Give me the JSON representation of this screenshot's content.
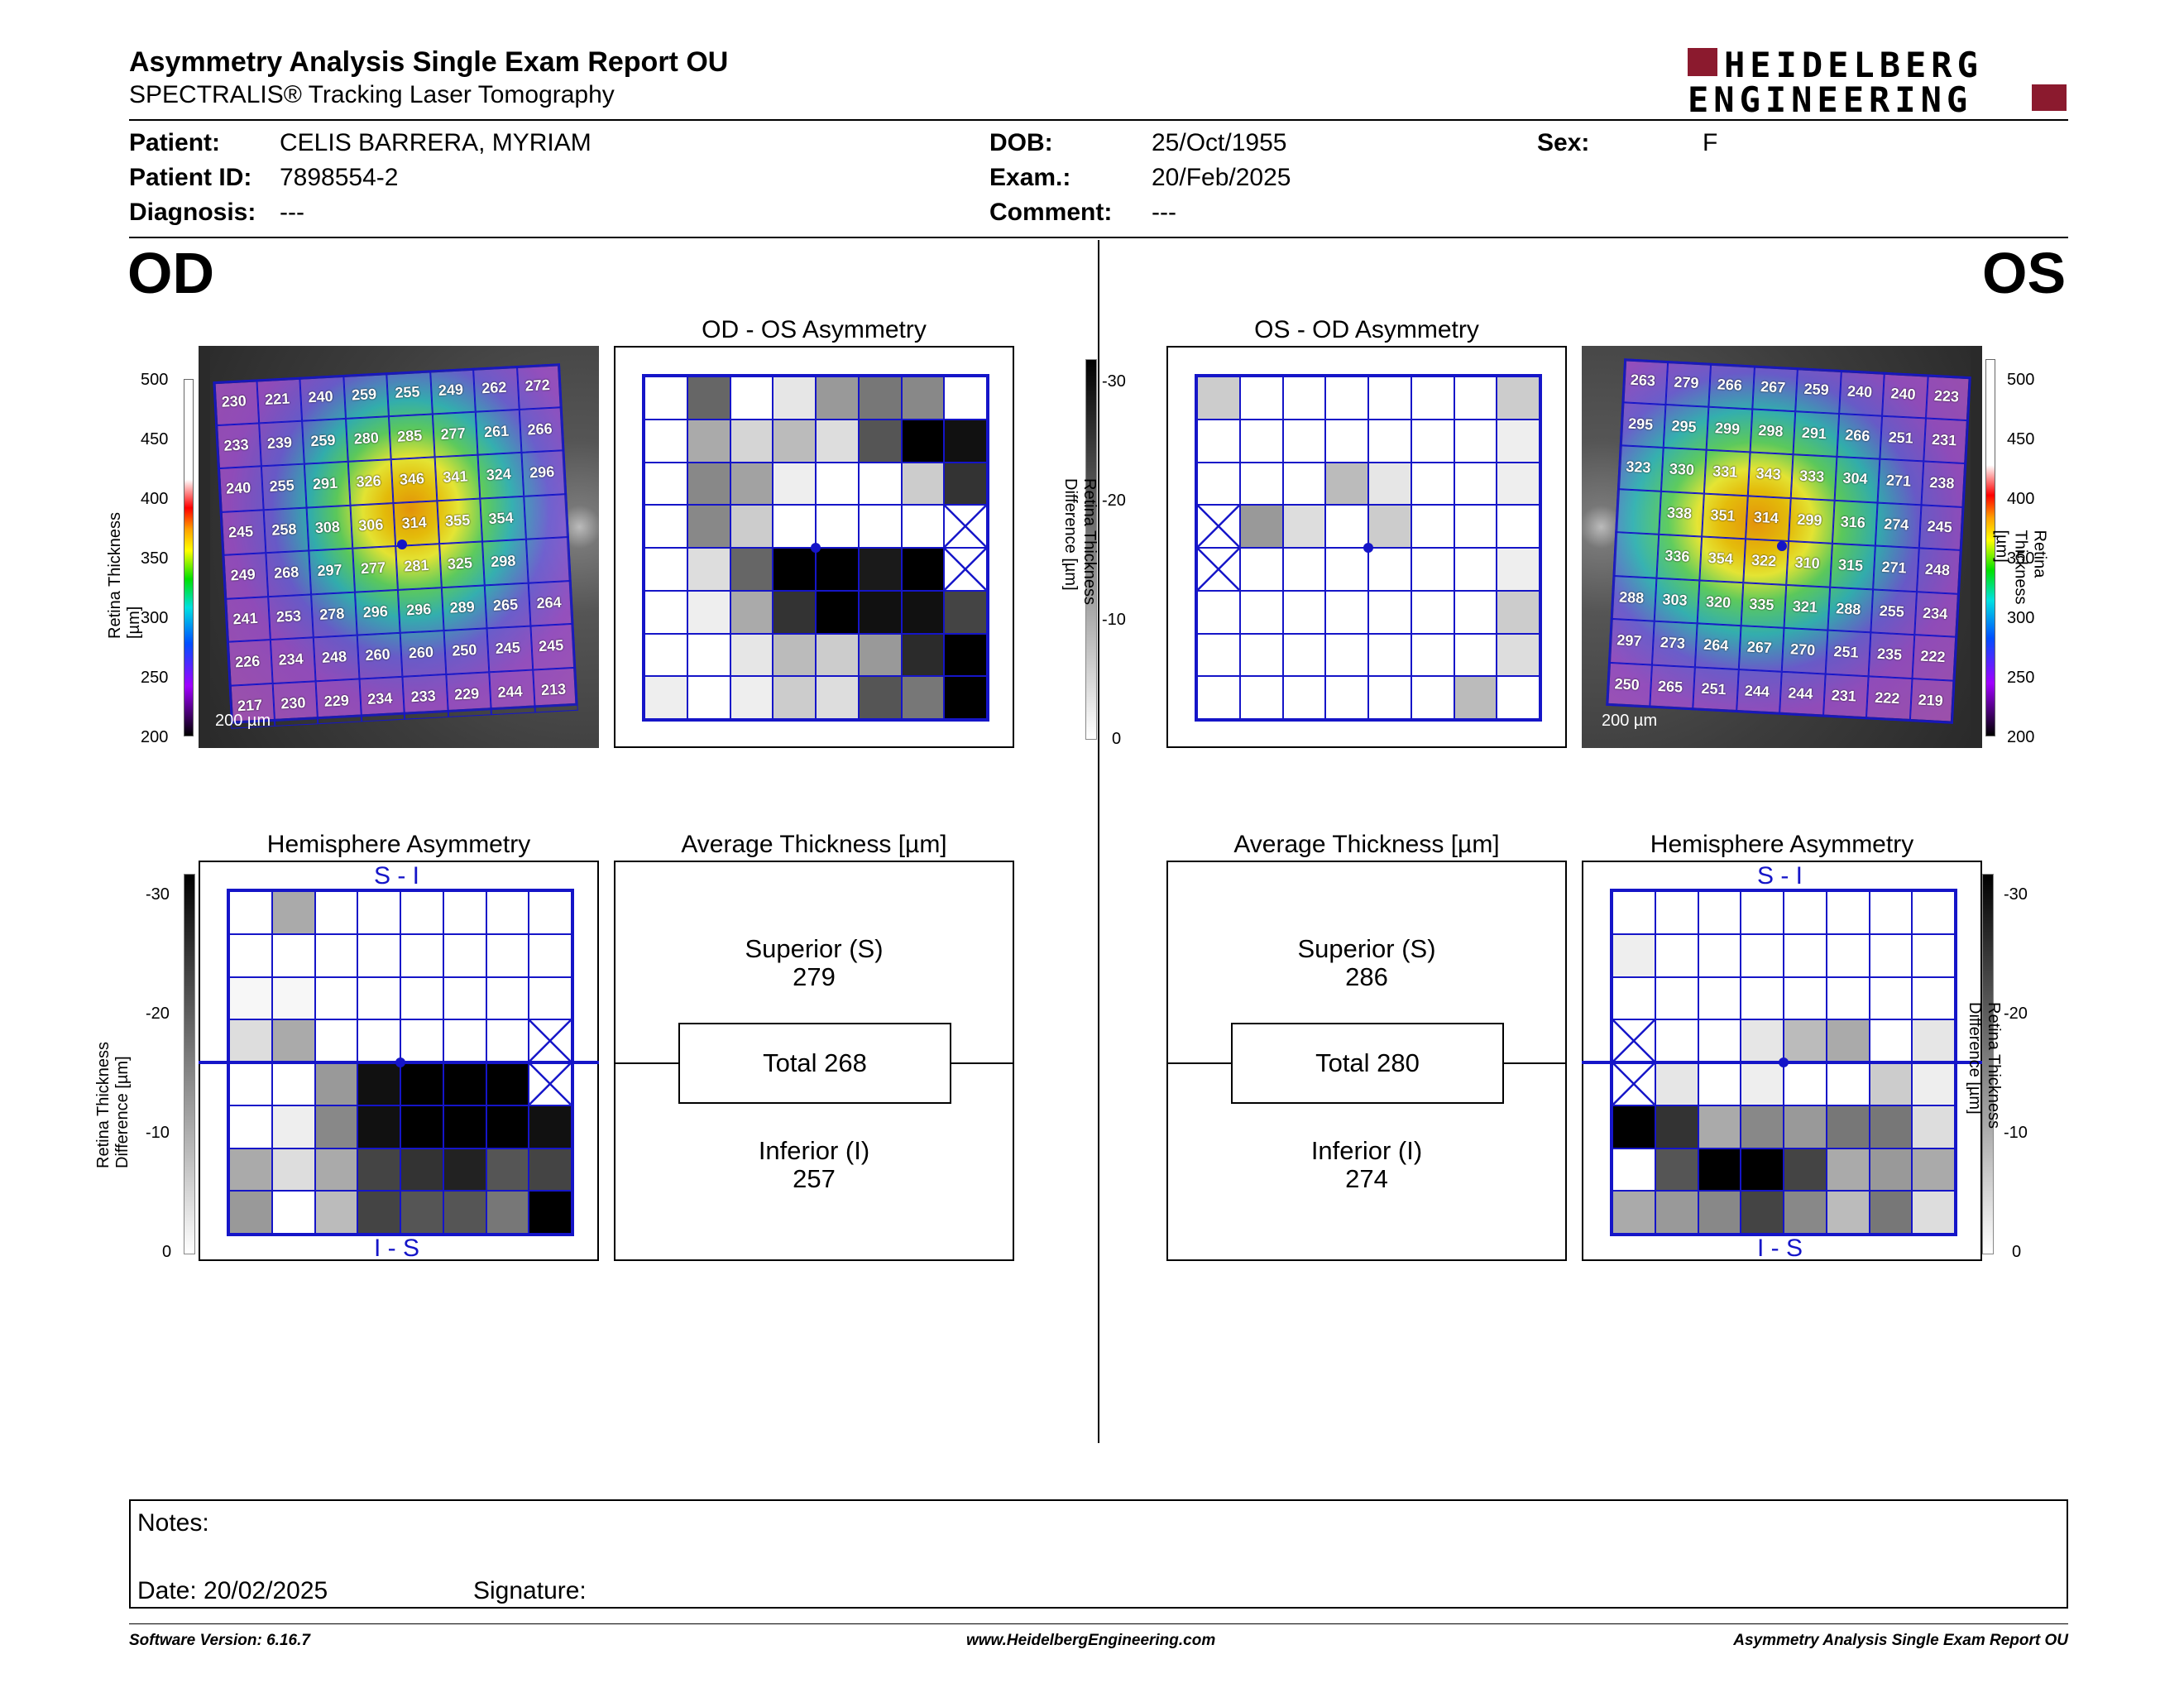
{
  "header": {
    "title": "Asymmetry Analysis Single Exam Report OU",
    "subtitle": "SPECTRALIS® Tracking Laser Tomography",
    "logo_line1": "HEIDELBERG",
    "logo_line2": "ENGINEERING"
  },
  "patient": {
    "patient_label": "Patient:",
    "patient_value": "CELIS BARRERA, MYRIAM",
    "id_label": "Patient ID:",
    "id_value": "7898554-2",
    "diagnosis_label": "Diagnosis:",
    "diagnosis_value": "---",
    "dob_label": "DOB:",
    "dob_value": "25/Oct/1955",
    "exam_label": "Exam.:",
    "exam_value": "20/Feb/2025",
    "comment_label": "Comment:",
    "comment_value": "---",
    "sex_label": "Sex:",
    "sex_value": "F"
  },
  "od": {
    "eye_label": "OD",
    "asym_title": "OD - OS Asymmetry",
    "hemi_title": "Hemisphere Asymmetry",
    "hemi_top": "S - I",
    "hemi_bottom": "I - S",
    "avg_title": "Average Thickness [µm]",
    "superior_label": "Superior (S)",
    "superior_value": "279",
    "total_label": "Total 268",
    "inferior_label": "Inferior (I)",
    "inferior_value": "257",
    "scale_label": "200 µm",
    "thickness_grid": [
      [
        230,
        221,
        240,
        259,
        255,
        249,
        262,
        272
      ],
      [
        233,
        239,
        259,
        280,
        285,
        277,
        261,
        266
      ],
      [
        240,
        255,
        291,
        326,
        346,
        341,
        324,
        296
      ],
      [
        245,
        258,
        308,
        306,
        314,
        355,
        354,
        ""
      ],
      [
        249,
        268,
        297,
        277,
        281,
        325,
        298,
        ""
      ],
      [
        241,
        253,
        278,
        296,
        296,
        289,
        265,
        264
      ],
      [
        226,
        234,
        248,
        260,
        260,
        250,
        245,
        245
      ],
      [
        217,
        230,
        229,
        234,
        233,
        229,
        244,
        213
      ]
    ],
    "asym_grid": [
      [
        0,
        18,
        0,
        3,
        12,
        16,
        14,
        0
      ],
      [
        0,
        10,
        5,
        8,
        4,
        20,
        30,
        28
      ],
      [
        0,
        14,
        11,
        2,
        0,
        0,
        6,
        24
      ],
      [
        0,
        14,
        6,
        0,
        0,
        0,
        0,
        -1
      ],
      [
        0,
        4,
        18,
        30,
        30,
        27,
        30,
        -1
      ],
      [
        0,
        2,
        10,
        24,
        30,
        28,
        28,
        22
      ],
      [
        0,
        0,
        3,
        8,
        6,
        12,
        25,
        30
      ],
      [
        2,
        0,
        2,
        6,
        4,
        20,
        16,
        30
      ]
    ],
    "hemi_grid": [
      [
        0,
        10,
        0,
        0,
        0,
        0,
        0,
        0
      ],
      [
        0,
        0,
        0,
        0,
        0,
        0,
        0,
        0
      ],
      [
        1,
        1,
        0,
        0,
        0,
        0,
        0,
        0
      ],
      [
        4,
        10,
        0,
        0,
        0,
        0,
        0,
        -1
      ],
      [
        0,
        0,
        12,
        28,
        30,
        30,
        30,
        -1
      ],
      [
        0,
        2,
        14,
        28,
        30,
        30,
        30,
        28
      ],
      [
        10,
        4,
        10,
        22,
        24,
        26,
        20,
        22
      ],
      [
        12,
        0,
        8,
        22,
        20,
        20,
        16,
        30
      ]
    ]
  },
  "os": {
    "eye_label": "OS",
    "asym_title": "OS - OD Asymmetry",
    "hemi_title": "Hemisphere Asymmetry",
    "hemi_top": "S - I",
    "hemi_bottom": "I - S",
    "avg_title": "Average Thickness [µm]",
    "superior_label": "Superior (S)",
    "superior_value": "286",
    "total_label": "Total 280",
    "inferior_label": "Inferior (I)",
    "inferior_value": "274",
    "scale_label": "200 µm",
    "thickness_grid": [
      [
        263,
        279,
        266,
        267,
        259,
        240,
        240,
        223
      ],
      [
        295,
        295,
        299,
        298,
        291,
        266,
        251,
        231
      ],
      [
        323,
        330,
        331,
        343,
        333,
        304,
        271,
        238
      ],
      [
        "",
        338,
        351,
        314,
        299,
        316,
        274,
        245
      ],
      [
        "",
        336,
        354,
        322,
        310,
        315,
        271,
        248
      ],
      [
        288,
        303,
        320,
        335,
        321,
        288,
        255,
        234
      ],
      [
        297,
        273,
        264,
        267,
        270,
        251,
        235,
        222
      ],
      [
        250,
        265,
        251,
        244,
        244,
        231,
        222,
        219
      ]
    ],
    "asym_grid": [
      [
        6,
        0,
        0,
        0,
        0,
        0,
        0,
        6
      ],
      [
        0,
        0,
        0,
        0,
        0,
        0,
        0,
        2
      ],
      [
        0,
        0,
        0,
        8,
        3,
        0,
        0,
        2
      ],
      [
        -1,
        12,
        4,
        0,
        6,
        0,
        0,
        0
      ],
      [
        -1,
        0,
        0,
        0,
        0,
        0,
        0,
        2
      ],
      [
        0,
        0,
        0,
        0,
        0,
        0,
        0,
        6
      ],
      [
        0,
        0,
        0,
        0,
        0,
        0,
        0,
        4
      ],
      [
        0,
        0,
        0,
        0,
        0,
        0,
        8,
        0
      ]
    ],
    "hemi_grid": [
      [
        0,
        0,
        0,
        0,
        0,
        0,
        0,
        0
      ],
      [
        2,
        0,
        0,
        0,
        0,
        0,
        0,
        0
      ],
      [
        0,
        0,
        0,
        0,
        0,
        0,
        0,
        0
      ],
      [
        -1,
        0,
        0,
        3,
        8,
        10,
        0,
        3
      ],
      [
        -1,
        3,
        0,
        2,
        0,
        0,
        6,
        2
      ],
      [
        30,
        24,
        10,
        14,
        12,
        16,
        16,
        4
      ],
      [
        0,
        20,
        30,
        30,
        22,
        10,
        12,
        10
      ],
      [
        10,
        12,
        14,
        22,
        14,
        8,
        16,
        4
      ]
    ]
  },
  "legends": {
    "thickness_label": "Retina Thickness [µm]",
    "thickness_ticks": [
      "500",
      "450",
      "400",
      "350",
      "300",
      "250",
      "200"
    ],
    "diff_label": "Retina Thickness Difference [µm]",
    "diff_ticks": [
      "-30",
      "-20",
      "-10",
      "0"
    ]
  },
  "notes": {
    "notes_label": "Notes:",
    "date_label": "Date: 20/02/2025",
    "signature_label": "Signature:"
  },
  "footer": {
    "software": "Software Version: 6.16.7",
    "website": "www.HeidelbergEngineering.com",
    "report_name": "Asymmetry Analysis Single Exam Report OU"
  },
  "colors": {
    "grid_blue": "#1515c8",
    "logo_red": "#8b1a2e"
  }
}
